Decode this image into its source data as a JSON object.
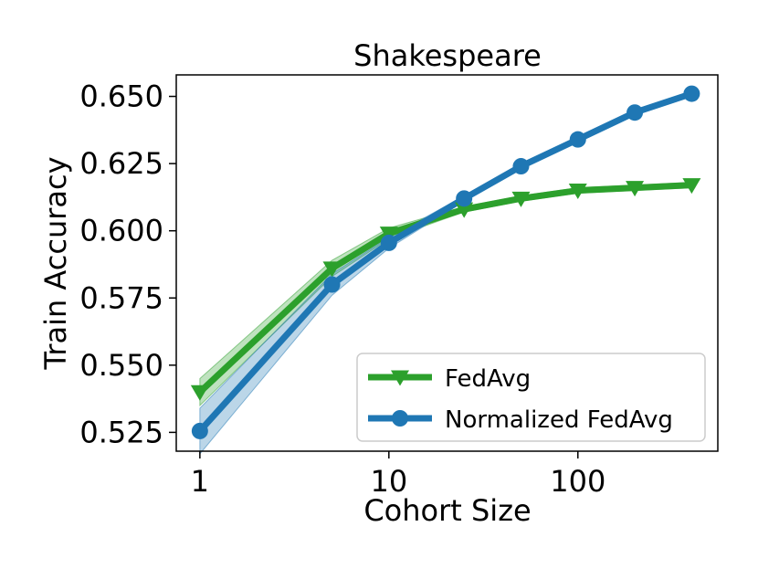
{
  "chart_data": {
    "type": "line",
    "title": "Shakespeare",
    "xlabel": "Cohort Size",
    "ylabel": "Train Accuracy",
    "xscale": "log",
    "xlim": [
      0.75,
      550
    ],
    "ylim": [
      0.518,
      0.658
    ],
    "xticks": [
      1,
      10,
      100
    ],
    "xtick_labels": [
      "1",
      "10",
      "100"
    ],
    "yticks": [
      0.525,
      0.55,
      0.575,
      0.6,
      0.625,
      0.65
    ],
    "ytick_labels": [
      "0.525",
      "0.550",
      "0.575",
      "0.600",
      "0.625",
      "0.650"
    ],
    "grid": false,
    "legend_position": "lower-right",
    "x": [
      1,
      5,
      10,
      25,
      50,
      100,
      200,
      400
    ],
    "series": [
      {
        "name": "FedAvg",
        "color": "#2ca02c",
        "marker": "triangle-down",
        "values": [
          0.54,
          0.586,
          0.599,
          0.608,
          0.612,
          0.615,
          0.616,
          0.617
        ],
        "band_lower": [
          0.535,
          0.583,
          0.597,
          0.607,
          0.611,
          0.614,
          0.615,
          0.616
        ],
        "band_upper": [
          0.545,
          0.589,
          0.601,
          0.609,
          0.613,
          0.616,
          0.617,
          0.618
        ]
      },
      {
        "name": "Normalized FedAvg",
        "color": "#1f77b4",
        "marker": "circle",
        "values": [
          0.5255,
          0.58,
          0.5955,
          0.612,
          0.624,
          0.634,
          0.644,
          0.651
        ],
        "band_lower": [
          0.517,
          0.576,
          0.5935,
          0.611,
          0.623,
          0.633,
          0.643,
          0.65
        ],
        "band_upper": [
          0.534,
          0.584,
          0.5975,
          0.613,
          0.625,
          0.635,
          0.645,
          0.652
        ]
      }
    ]
  }
}
